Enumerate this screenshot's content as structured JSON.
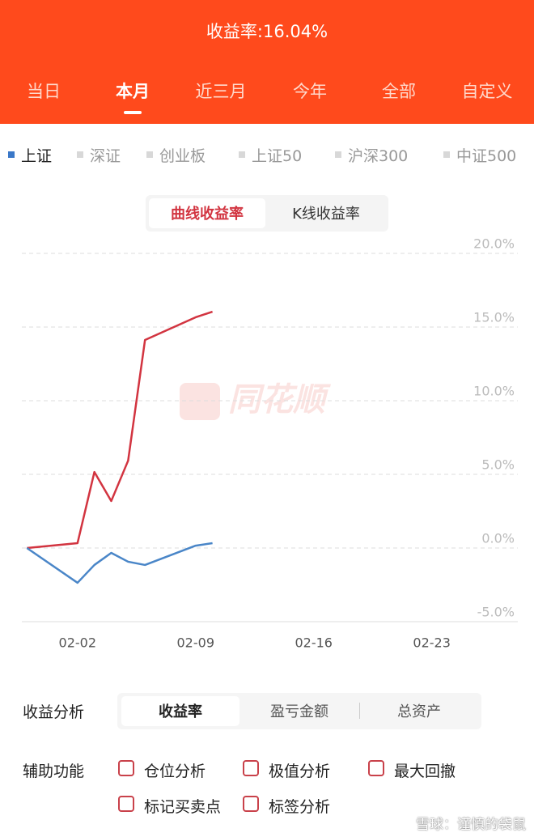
{
  "header": {
    "title": "收益率:16.04%"
  },
  "tabs": {
    "items": [
      "当日",
      "本月",
      "近三月",
      "今年",
      "全部",
      "自定义"
    ],
    "active": 1
  },
  "indices": {
    "items": [
      "上证",
      "深证",
      "创业板",
      "上证50",
      "沪深300",
      "中证500"
    ],
    "active": 0
  },
  "chart_toggle": {
    "items": [
      "曲线收益率",
      "K线收益率"
    ],
    "active": 0
  },
  "watermark": "同花顺",
  "chart_data": {
    "type": "line",
    "x": [
      -1,
      2,
      3,
      4,
      5,
      6,
      9,
      10
    ],
    "series": [
      {
        "color": "#d23440",
        "values": [
          0,
          0.33,
          5.16,
          3.19,
          5.93,
          14.12,
          15.66,
          16.04
        ]
      },
      {
        "color": "#4a86c8",
        "values": [
          0,
          -2.36,
          -1.15,
          -0.33,
          -0.93,
          -1.15,
          0.16,
          0.33
        ]
      }
    ],
    "xlim": [
      -1.3,
      28.1
    ],
    "xticks": [
      {
        "value": 2,
        "label": "02-02"
      },
      {
        "value": 9,
        "label": "02-09"
      },
      {
        "value": 16,
        "label": "02-16"
      },
      {
        "value": 23,
        "label": "02-23"
      }
    ],
    "ylim": [
      -5,
      20
    ],
    "yticks": [
      {
        "value": -5,
        "label": "-5.0%"
      },
      {
        "value": 0,
        "label": "0.0%"
      },
      {
        "value": 5,
        "label": "5.0%"
      },
      {
        "value": 10,
        "label": "10.0%"
      },
      {
        "value": 15,
        "label": "15.0%"
      },
      {
        "value": 20,
        "label": "20.0%"
      }
    ],
    "grid": true
  },
  "analysis": {
    "label": "收益分析",
    "items": [
      "收益率",
      "盈亏金额",
      "总资产"
    ],
    "active": 0
  },
  "assist": {
    "label": "辅助功能",
    "items": [
      "仓位分析",
      "极值分析",
      "最大回撤",
      "标记买卖点",
      "标签分析"
    ]
  },
  "footer_watermark": "雪球：谨慎的袋鼠"
}
